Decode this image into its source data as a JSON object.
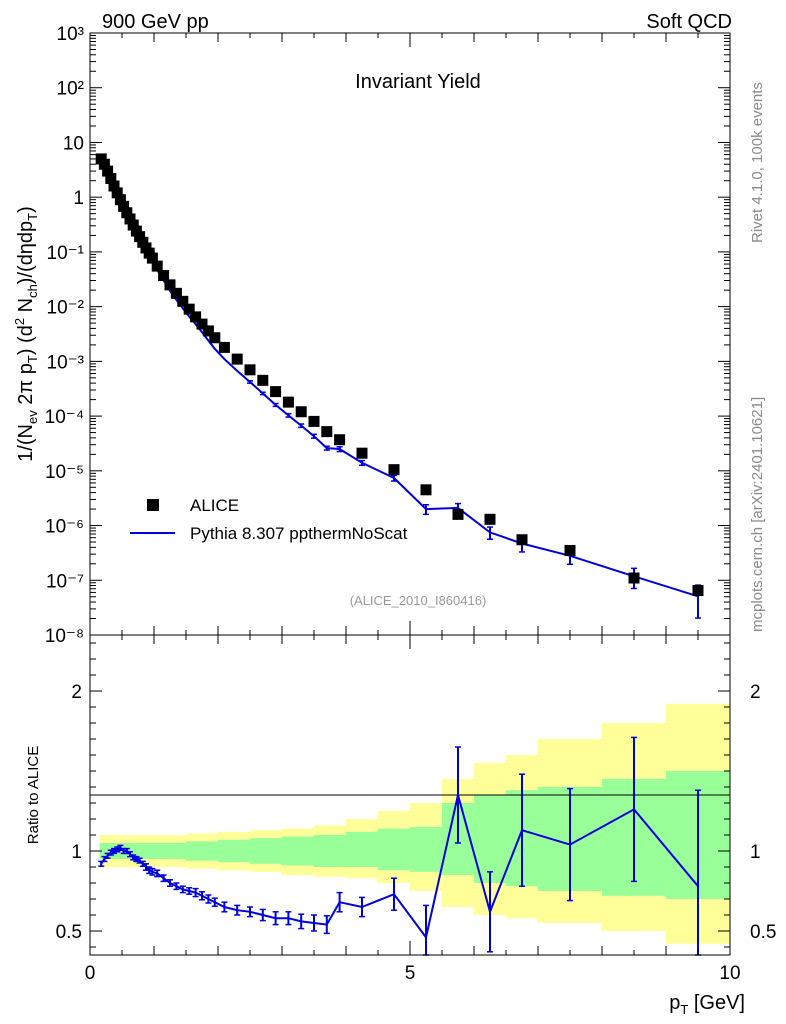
{
  "header": {
    "left": "900 GeV pp",
    "right": "Soft QCD"
  },
  "side": {
    "rivet": "Rivet 4.1.0,  100k events",
    "mcplots": "mcplots.cern.ch [arXiv:2401.10621]"
  },
  "colors": {
    "mc": "#0000dd",
    "data": "#000000",
    "band_yellow": "#ffff99",
    "band_green": "#99ff99"
  },
  "chart_data": [
    {
      "type": "scatter",
      "name": "main",
      "title": "Invariant Yield",
      "reference": "(ALICE_2010_I860416)",
      "ylabel": "1/(N_ev 2π p_T) (d² N_ch)/(dη dp_T)",
      "yscale": "log",
      "ylim": [
        1e-08,
        1000
      ],
      "xlim": [
        0,
        10
      ],
      "ytick_labels": [
        "10⁻⁸",
        "10⁻⁷",
        "10⁻⁶",
        "10⁻⁵",
        "10⁻⁴",
        "10⁻³",
        "10⁻²",
        "10⁻¹",
        "1",
        "10",
        "10²",
        "10³"
      ],
      "legend": {
        "position": "bottom-left",
        "entries": [
          "ALICE",
          "Pythia 8.307 ppthermNoScat"
        ]
      },
      "series": [
        {
          "name": "ALICE",
          "style": "markers",
          "x": [
            0.175,
            0.225,
            0.275,
            0.325,
            0.375,
            0.425,
            0.475,
            0.525,
            0.575,
            0.625,
            0.675,
            0.725,
            0.775,
            0.825,
            0.875,
            0.925,
            0.975,
            1.05,
            1.15,
            1.25,
            1.35,
            1.45,
            1.55,
            1.65,
            1.75,
            1.85,
            1.95,
            2.1,
            2.3,
            2.5,
            2.7,
            2.9,
            3.1,
            3.3,
            3.5,
            3.7,
            3.9,
            4.25,
            4.75,
            5.25,
            5.75,
            6.25,
            6.75,
            7.5,
            8.5,
            9.5
          ],
          "y": [
            5.0,
            4.0,
            3.0,
            2.2,
            1.6,
            1.2,
            0.9,
            0.68,
            0.52,
            0.4,
            0.31,
            0.24,
            0.19,
            0.15,
            0.118,
            0.095,
            0.077,
            0.055,
            0.037,
            0.025,
            0.0175,
            0.0125,
            0.009,
            0.0065,
            0.0048,
            0.0036,
            0.0027,
            0.0018,
            0.0011,
            0.0007,
            0.00045,
            0.00028,
            0.00018,
            0.00012,
            8e-05,
            5.2e-05,
            3.7e-05,
            2.1e-05,
            1.05e-05,
            4.5e-06,
            1.6e-06,
            1.3e-06,
            5.5e-07,
            3.5e-07,
            1.1e-07,
            6.5e-08
          ]
        },
        {
          "name": "Pythia 8.307 ppthermNoScat",
          "style": "line",
          "x": [
            0.175,
            0.225,
            0.275,
            0.325,
            0.375,
            0.425,
            0.475,
            0.525,
            0.575,
            0.625,
            0.675,
            0.725,
            0.775,
            0.825,
            0.875,
            0.925,
            0.975,
            1.05,
            1.15,
            1.25,
            1.35,
            1.45,
            1.55,
            1.65,
            1.75,
            1.85,
            1.95,
            2.1,
            2.3,
            2.5,
            2.7,
            2.9,
            3.1,
            3.3,
            3.5,
            3.7,
            3.9,
            4.25,
            4.75,
            5.25,
            5.75,
            6.25,
            6.75,
            7.5,
            8.5,
            9.5
          ],
          "y": [
            4.6,
            3.8,
            2.9,
            2.2,
            1.62,
            1.22,
            0.91,
            0.68,
            0.51,
            0.385,
            0.295,
            0.225,
            0.175,
            0.135,
            0.105,
            0.083,
            0.066,
            0.047,
            0.03,
            0.0195,
            0.0133,
            0.0093,
            0.0066,
            0.0048,
            0.0034,
            0.0024,
            0.0017,
            0.0011,
            0.00067,
            0.00042,
            0.00026,
            0.00016,
            0.000103,
            6.7e-05,
            4.3e-05,
            2.6e-05,
            2.5e-05,
            1.4e-05,
            7.4e-06,
            2e-06,
            2.1e-06,
            7.5e-07,
            4.7e-07,
            2.8e-07,
            1.18e-07,
            5.1e-08
          ],
          "yerr": [
            0.02,
            0.02,
            0.02,
            0.02,
            0.02,
            0.02,
            0.02,
            0.02,
            0.02,
            0.02,
            0.02,
            0.02,
            0.02,
            0.02,
            0.02,
            0.02,
            0.02,
            0.02,
            0.02,
            0.02,
            0.02,
            0.02,
            0.02,
            0.02,
            0.03,
            0.03,
            0.03,
            0.04,
            0.04,
            0.05,
            0.05,
            0.06,
            0.07,
            0.07,
            0.08,
            0.08,
            0.1,
            0.1,
            0.12,
            0.2,
            0.2,
            0.25,
            0.3,
            0.3,
            0.4,
            0.6
          ]
        }
      ]
    },
    {
      "type": "line",
      "name": "ratio",
      "ylabel": "Ratio to ALICE",
      "xlabel": "p_T [GeV]",
      "xlim": [
        0,
        10
      ],
      "ylim": [
        0.35,
        2.35
      ],
      "xtick_labels": [
        "0",
        "5",
        "10"
      ],
      "ytick_labels": [
        "0.5",
        "1",
        "2"
      ],
      "ratio": {
        "x": [
          0.175,
          0.225,
          0.275,
          0.325,
          0.375,
          0.425,
          0.475,
          0.525,
          0.575,
          0.625,
          0.675,
          0.725,
          0.775,
          0.825,
          0.875,
          0.925,
          0.975,
          1.05,
          1.15,
          1.25,
          1.35,
          1.45,
          1.55,
          1.65,
          1.75,
          1.85,
          1.95,
          2.1,
          2.3,
          2.5,
          2.7,
          2.9,
          3.1,
          3.3,
          3.5,
          3.7,
          3.9,
          4.25,
          4.75,
          5.25,
          5.75,
          6.25,
          6.75,
          7.5,
          8.5,
          9.5
        ],
        "y": [
          0.92,
          0.95,
          0.97,
          0.99,
          1.0,
          1.01,
          1.02,
          1.0,
          1.0,
          0.98,
          0.96,
          0.95,
          0.94,
          0.92,
          0.9,
          0.88,
          0.87,
          0.86,
          0.83,
          0.8,
          0.78,
          0.76,
          0.75,
          0.74,
          0.72,
          0.7,
          0.68,
          0.65,
          0.63,
          0.62,
          0.6,
          0.58,
          0.58,
          0.56,
          0.55,
          0.54,
          0.68,
          0.65,
          0.73,
          0.46,
          1.35,
          0.62,
          1.13,
          1.04,
          1.26,
          0.78
        ],
        "yerr": [
          0.015,
          0.015,
          0.015,
          0.015,
          0.015,
          0.015,
          0.015,
          0.015,
          0.015,
          0.015,
          0.015,
          0.015,
          0.015,
          0.015,
          0.02,
          0.02,
          0.02,
          0.02,
          0.02,
          0.02,
          0.02,
          0.02,
          0.02,
          0.025,
          0.025,
          0.025,
          0.025,
          0.03,
          0.03,
          0.03,
          0.035,
          0.04,
          0.04,
          0.045,
          0.05,
          0.055,
          0.06,
          0.06,
          0.1,
          0.2,
          0.3,
          0.25,
          0.35,
          0.35,
          0.45,
          0.6
        ]
      },
      "bands": {
        "edges": [
          0.15,
          0.5,
          1.0,
          1.5,
          2.0,
          2.5,
          3.0,
          3.5,
          4.0,
          4.5,
          5.0,
          5.5,
          6.0,
          6.5,
          7.0,
          8.0,
          9.0,
          10.0
        ],
        "green_lo": [
          0.95,
          0.95,
          0.95,
          0.94,
          0.93,
          0.92,
          0.91,
          0.9,
          0.9,
          0.88,
          0.87,
          0.85,
          0.8,
          0.78,
          0.75,
          0.72,
          0.7
        ],
        "green_hi": [
          1.05,
          1.05,
          1.05,
          1.06,
          1.07,
          1.08,
          1.09,
          1.1,
          1.12,
          1.14,
          1.15,
          1.3,
          1.35,
          1.38,
          1.4,
          1.45,
          1.5
        ],
        "yellow_lo": [
          0.9,
          0.9,
          0.9,
          0.89,
          0.88,
          0.87,
          0.85,
          0.84,
          0.83,
          0.8,
          0.75,
          0.65,
          0.6,
          0.58,
          0.55,
          0.5,
          0.42
        ],
        "yellow_hi": [
          1.1,
          1.1,
          1.1,
          1.11,
          1.12,
          1.13,
          1.14,
          1.16,
          1.2,
          1.25,
          1.3,
          1.45,
          1.55,
          1.6,
          1.7,
          1.8,
          1.92
        ]
      }
    }
  ]
}
